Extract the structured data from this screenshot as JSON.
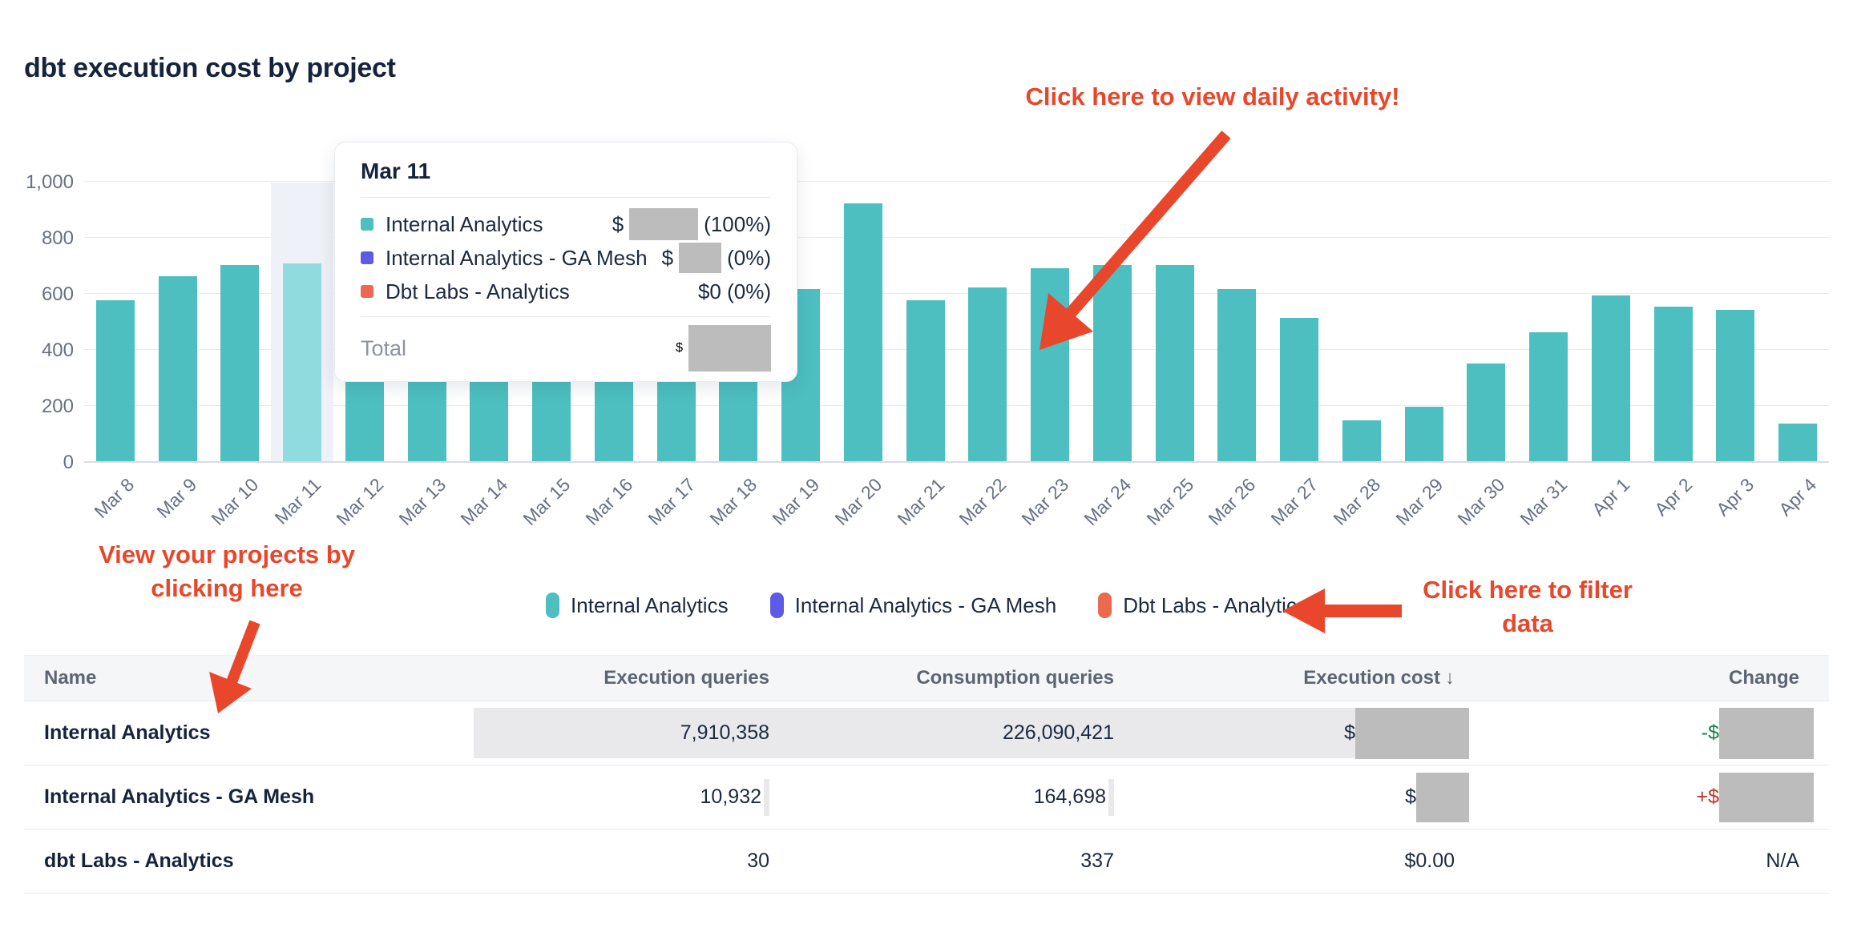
{
  "page": {
    "title": "dbt execution cost by project"
  },
  "colors": {
    "bar_teal": "#4dbfc1",
    "bar_highlight": "#8fdbdd",
    "hover_band": "#eef1f7",
    "purple": "#5d5be5",
    "orange": "#ec684e",
    "annotation_red": "#e8472b",
    "redaction_gray": "#bcbcbc",
    "negative_green": "#168150",
    "positive_red": "#bb342c"
  },
  "chart_data": {
    "type": "bar",
    "title": "dbt execution cost by project",
    "x": [
      "Mar 8",
      "Mar 9",
      "Mar 10",
      "Mar 11",
      "Mar 12",
      "Mar 13",
      "Mar 14",
      "Mar 15",
      "Mar 16",
      "Mar 17",
      "Mar 18",
      "Mar 19",
      "Mar 20",
      "Mar 21",
      "Mar 22",
      "Mar 23",
      "Mar 24",
      "Mar 25",
      "Mar 26",
      "Mar 27",
      "Mar 28",
      "Mar 29",
      "Mar 30",
      "Mar 31",
      "Apr 1",
      "Apr 2",
      "Apr 3",
      "Apr 4"
    ],
    "series": [
      {
        "name": "Internal Analytics",
        "values": [
          575,
          660,
          700,
          705,
          290,
          290,
          290,
          290,
          290,
          290,
          290,
          615,
          920,
          575,
          620,
          690,
          700,
          700,
          615,
          510,
          145,
          195,
          350,
          460,
          590,
          550,
          540,
          135
        ]
      }
    ],
    "highlighted_x": "Mar 11",
    "ylim": [
      0,
      1000
    ],
    "ytick_values": [
      0,
      200,
      400,
      600,
      800,
      1000
    ],
    "ytick_labels": [
      "0",
      "200",
      "400",
      "600",
      "800",
      "1,000"
    ],
    "xlabel": "",
    "ylabel": "",
    "grid": true,
    "legend_position": "bottom"
  },
  "tooltip": {
    "title": "Mar 11",
    "rows": [
      {
        "label": "Internal Analytics",
        "color": "#4dbfc1",
        "prefix": "$",
        "redact": [
          86,
          40
        ],
        "suffix": "(100%)"
      },
      {
        "label": "Internal Analytics - GA Mesh",
        "color": "#5d5be5",
        "prefix": "$",
        "redact": [
          53,
          38
        ],
        "suffix": "(0%)"
      },
      {
        "label": "Dbt Labs - Analytics",
        "color": "#ec684e",
        "value": "$0 (0%)"
      }
    ],
    "total": {
      "label": "Total",
      "prefix": "$",
      "redact": [
        103,
        58
      ]
    }
  },
  "legend": {
    "items": [
      {
        "label": "Internal Analytics",
        "color": "#4dbfc1"
      },
      {
        "label": "Internal Analytics - GA Mesh",
        "color": "#5d5be5"
      },
      {
        "label": "Dbt Labs - Analytics",
        "color": "#ec684e"
      }
    ]
  },
  "annotations": {
    "daily": {
      "text": "Click here to view daily activity!"
    },
    "projects": {
      "text": "View your projects by\nclicking here"
    },
    "filter": {
      "text": "Click here to filter\ndata"
    }
  },
  "table": {
    "columns": [
      {
        "label": "Name",
        "align": "left"
      },
      {
        "label": "Execution queries",
        "align": "right"
      },
      {
        "label": "Consumption queries",
        "align": "right"
      },
      {
        "label": "Execution cost",
        "align": "right",
        "sort": "desc"
      },
      {
        "label": "Change",
        "align": "right"
      }
    ],
    "rows": [
      {
        "name": "Internal Analytics",
        "execution_queries": {
          "text": "7,910,358",
          "databar": "full"
        },
        "consumption_queries": {
          "text": "226,090,421",
          "databar": "full"
        },
        "execution_cost": {
          "prefix": "$",
          "databar": "full",
          "redact": [
            142,
            64
          ]
        },
        "change": {
          "prefix": "-$",
          "tone": "negative-green",
          "redact": [
            118,
            64
          ]
        }
      },
      {
        "name": "Internal Analytics - GA Mesh",
        "execution_queries": {
          "text": "10,932",
          "databar": "sliver"
        },
        "consumption_queries": {
          "text": "164,698",
          "databar": "sliver"
        },
        "execution_cost": {
          "prefix": "$",
          "redact": [
            66,
            62
          ]
        },
        "change": {
          "prefix": "+$",
          "tone": "positive-red",
          "redact": [
            118,
            62
          ]
        }
      },
      {
        "name": "dbt Labs - Analytics",
        "execution_queries": {
          "text": "30"
        },
        "consumption_queries": {
          "text": "337"
        },
        "execution_cost": {
          "text": "$0.00"
        },
        "change": {
          "text": "N/A"
        }
      }
    ]
  }
}
